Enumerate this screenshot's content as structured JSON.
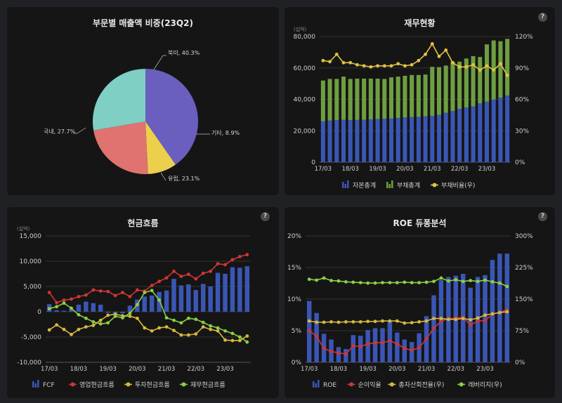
{
  "chart_data": [
    {
      "type": "pie",
      "title": "부문별 매출액 비중(23Q2)",
      "slices": [
        {
          "label": "북미, 40.3%",
          "value": 40.3,
          "color": "#6a5fbf"
        },
        {
          "label": "기타, 8.9%",
          "value": 8.9,
          "color": "#ecd04d"
        },
        {
          "label": "유럽, 23.1%",
          "value": 23.1,
          "color": "#e0736f"
        },
        {
          "label": "국내, 27.7%",
          "value": 27.7,
          "color": "#7fcfc5"
        }
      ]
    },
    {
      "type": "bar",
      "title": "재무현황",
      "unit": "(십억)",
      "help": "?",
      "x_ticks": [
        "17/03",
        "18/03",
        "19/03",
        "20/03",
        "21/03",
        "22/03",
        "23/03"
      ],
      "y_left": {
        "ticks": [
          "0",
          "20,000",
          "40,000",
          "60,000",
          "80,000"
        ],
        "ylim": [
          0,
          80000
        ]
      },
      "y_right": {
        "ticks": [
          "0%",
          "30%",
          "60%",
          "90%",
          "120%"
        ],
        "ylim": [
          0,
          120
        ]
      },
      "series": [
        {
          "name": "자본총계",
          "color": "#3a56b5",
          "values": [
            26000,
            26500,
            26800,
            27000,
            26800,
            26900,
            27000,
            27200,
            27500,
            27600,
            27800,
            28200,
            28500,
            28700,
            28900,
            29200,
            29500,
            30100,
            31500,
            32500,
            34000,
            34800,
            35500,
            37500,
            38500,
            40000,
            41000,
            42500
          ]
        },
        {
          "name": "부채총계",
          "color": "#6e9e41",
          "values": [
            26000,
            26500,
            26200,
            27500,
            26200,
            26300,
            26200,
            26000,
            25700,
            25400,
            26200,
            26300,
            26500,
            26800,
            26600,
            26600,
            31200,
            30400,
            30000,
            31500,
            30000,
            31200,
            32000,
            29500,
            36500,
            37500,
            36000,
            36000
          ]
        },
        {
          "name": "부채비율(우)",
          "color": "#e0c341",
          "values": [
            97,
            96,
            103,
            95,
            95,
            93,
            92,
            91,
            92,
            92,
            92,
            94,
            92,
            93,
            97,
            103,
            113,
            101,
            107,
            95,
            91,
            91,
            93,
            88,
            92,
            88,
            94,
            83
          ]
        }
      ]
    },
    {
      "type": "bar",
      "title": "현금흐름",
      "unit": "(십억)",
      "help": "?",
      "x_ticks": [
        "17/03",
        "18/03",
        "19/03",
        "20/03",
        "21/03",
        "22/03",
        "23/03"
      ],
      "y_left": {
        "ticks": [
          "-10,000",
          "-5,000",
          "0",
          "5,000",
          "10,000",
          "15,000"
        ],
        "ylim": [
          -10000,
          15000
        ]
      },
      "series": [
        {
          "name": "FCF",
          "color": "#3a56b5",
          "values": [
            1500,
            300,
            200,
            500,
            1400,
            2000,
            1700,
            1400,
            -200,
            -400,
            -300,
            1200,
            2400,
            3000,
            3200,
            3900,
            4200,
            6500,
            5200,
            5400,
            4300,
            5500,
            5000,
            7700,
            7500,
            8800,
            8700,
            9000
          ]
        },
        {
          "name": "영업현금흐름",
          "color": "#d23535",
          "values": [
            3800,
            1800,
            2300,
            2500,
            3000,
            3300,
            4300,
            4100,
            4000,
            3200,
            3800,
            3000,
            4300,
            4100,
            5200,
            6000,
            6700,
            8000,
            7000,
            7400,
            6500,
            7600,
            8000,
            9500,
            9300,
            10300,
            10900,
            11300
          ]
        },
        {
          "name": "투자현금흐름",
          "color": "#d6b83c",
          "values": [
            -3600,
            -2600,
            -3500,
            -4500,
            -3500,
            -3000,
            -2700,
            -1700,
            -700,
            -500,
            -800,
            -900,
            -1300,
            -3200,
            -3800,
            -3200,
            -3000,
            -3700,
            -4600,
            -4600,
            -4400,
            -3000,
            -3500,
            -3800,
            -5600,
            -5700,
            -5700,
            -4800
          ]
        },
        {
          "name": "재무현금흐름",
          "color": "#8ccf45",
          "values": [
            600,
            1000,
            1700,
            700,
            -600,
            -1300,
            -2000,
            -2400,
            -2200,
            -900,
            -1200,
            -300,
            1400,
            3800,
            4200,
            2300,
            -1200,
            -1700,
            -2200,
            -1300,
            -1500,
            -2100,
            -2800,
            -3200,
            -3800,
            -4300,
            -5000,
            -6000
          ]
        }
      ]
    },
    {
      "type": "bar",
      "title": "ROE 듀퐁분석",
      "help": "?",
      "x_ticks": [
        "17/03",
        "18/03",
        "19/03",
        "20/03",
        "21/03",
        "22/03",
        "23/03"
      ],
      "y_left": {
        "ticks": [
          "0%",
          "5%",
          "10%",
          "15%",
          "20%"
        ],
        "ylim": [
          0,
          20
        ]
      },
      "y_right": {
        "ticks": [
          "0%",
          "75%",
          "150%",
          "225%",
          "300%"
        ],
        "ylim": [
          0,
          300
        ]
      },
      "series": [
        {
          "name": "ROE",
          "color": "#3a56b5",
          "values": [
            9.7,
            7.8,
            4.5,
            3.6,
            2.4,
            2.1,
            4.3,
            4.2,
            5.1,
            5.4,
            5.4,
            6.4,
            4.7,
            3.6,
            3.2,
            4.6,
            7.3,
            10.6,
            13.0,
            13.5,
            13.7,
            14.0,
            11.8,
            13.5,
            13.8,
            16.2,
            17.2,
            17.2
          ]
        },
        {
          "name": "순이익율",
          "color": "#d23535",
          "values": [
            5.0,
            4.1,
            2.2,
            1.7,
            1.5,
            1.3,
            2.6,
            2.5,
            2.9,
            3.1,
            3.1,
            3.4,
            2.9,
            2.2,
            1.9,
            2.3,
            3.7,
            5.4,
            6.5,
            6.9,
            7.0,
            7.1,
            5.9,
            6.5,
            6.6,
            7.6,
            7.9,
            8.3
          ]
        },
        {
          "name": "총자산회전율(우)",
          "color": "#d6b83c",
          "values": [
            98,
            95,
            95,
            96,
            95,
            96,
            96,
            96,
            97,
            97,
            98,
            98,
            98,
            93,
            94,
            96,
            98,
            104,
            104,
            102,
            102,
            104,
            101,
            105,
            112,
            115,
            118,
            120
          ]
        },
        {
          "name": "레버리지(우)",
          "color": "#8ccf45",
          "values": [
            197,
            195,
            200,
            194,
            193,
            191,
            190,
            189,
            188,
            188,
            189,
            189,
            189,
            190,
            189,
            189,
            190,
            192,
            200,
            193,
            196,
            192,
            194,
            192,
            195,
            191,
            188,
            180
          ]
        }
      ]
    }
  ]
}
